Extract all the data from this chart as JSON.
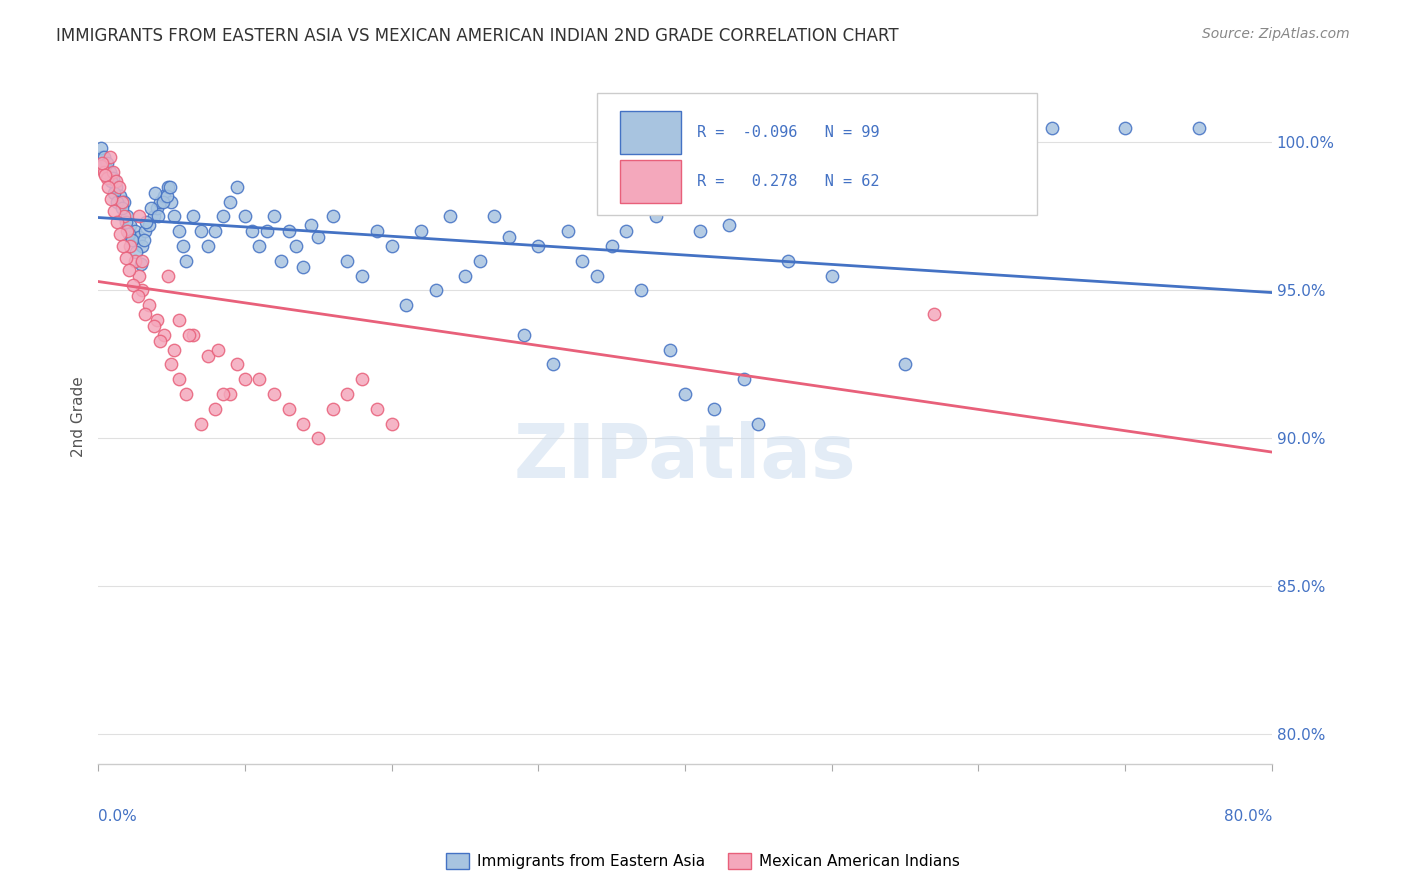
{
  "title": "IMMIGRANTS FROM EASTERN ASIA VS MEXICAN AMERICAN INDIAN 2ND GRADE CORRELATION CHART",
  "source": "Source: ZipAtlas.com",
  "ylabel": "2nd Grade",
  "xlim": [
    0.0,
    80.0
  ],
  "ylim": [
    79.0,
    102.5
  ],
  "yticks": [
    80.0,
    85.0,
    90.0,
    95.0,
    100.0
  ],
  "ytick_labels": [
    "80.0%",
    "85.0%",
    "90.0%",
    "95.0%",
    "100.0%"
  ],
  "xticks": [
    0.0,
    10.0,
    20.0,
    30.0,
    40.0,
    50.0,
    60.0,
    70.0,
    80.0
  ],
  "blue_R": -0.096,
  "blue_N": 99,
  "pink_R": 0.278,
  "pink_N": 62,
  "blue_color": "#a8c4e0",
  "pink_color": "#f4a8bc",
  "blue_line_color": "#4472c4",
  "pink_line_color": "#e8607a",
  "legend_label_blue": "Immigrants from Eastern Asia",
  "legend_label_pink": "Mexican American Indians",
  "watermark": "ZIPatlas",
  "blue_x": [
    0.3,
    0.5,
    0.8,
    1.0,
    1.2,
    1.5,
    1.8,
    2.0,
    2.2,
    2.5,
    2.8,
    3.0,
    3.2,
    3.5,
    3.8,
    4.0,
    4.2,
    4.5,
    4.8,
    5.0,
    5.2,
    5.5,
    5.8,
    6.0,
    6.5,
    7.0,
    7.5,
    8.0,
    8.5,
    9.0,
    9.5,
    10.0,
    10.5,
    11.0,
    11.5,
    12.0,
    12.5,
    13.0,
    13.5,
    14.0,
    14.5,
    15.0,
    16.0,
    17.0,
    18.0,
    19.0,
    20.0,
    21.0,
    22.0,
    23.0,
    24.0,
    25.0,
    26.0,
    27.0,
    28.0,
    29.0,
    30.0,
    31.0,
    32.0,
    33.0,
    34.0,
    35.0,
    36.0,
    37.0,
    38.0,
    39.0,
    40.0,
    41.0,
    42.0,
    43.0,
    44.0,
    45.0,
    47.0,
    50.0,
    55.0,
    60.0,
    65.0,
    70.0,
    75.0,
    0.2,
    0.4,
    0.6,
    0.9,
    1.1,
    1.3,
    1.6,
    1.9,
    2.1,
    2.3,
    2.6,
    2.9,
    3.1,
    3.3,
    3.6,
    3.9,
    4.1,
    4.4,
    4.7,
    4.9
  ],
  "blue_y": [
    99.5,
    99.2,
    99.0,
    98.8,
    98.5,
    98.2,
    98.0,
    97.5,
    97.2,
    97.0,
    96.8,
    96.5,
    97.0,
    97.2,
    97.5,
    97.8,
    98.0,
    98.2,
    98.5,
    98.0,
    97.5,
    97.0,
    96.5,
    96.0,
    97.5,
    97.0,
    96.5,
    97.0,
    97.5,
    98.0,
    98.5,
    97.5,
    97.0,
    96.5,
    97.0,
    97.5,
    96.0,
    97.0,
    96.5,
    95.8,
    97.2,
    96.8,
    97.5,
    96.0,
    95.5,
    97.0,
    96.5,
    94.5,
    97.0,
    95.0,
    97.5,
    95.5,
    96.0,
    97.5,
    96.8,
    93.5,
    96.5,
    92.5,
    97.0,
    96.0,
    95.5,
    96.5,
    97.0,
    95.0,
    97.5,
    93.0,
    91.5,
    97.0,
    91.0,
    97.2,
    92.0,
    90.5,
    96.0,
    95.5,
    92.5,
    100.5,
    100.5,
    100.5,
    100.5,
    99.8,
    99.5,
    99.3,
    98.7,
    98.3,
    98.0,
    97.8,
    97.3,
    96.9,
    96.7,
    96.3,
    95.9,
    96.7,
    97.3,
    97.8,
    98.3,
    97.5,
    98.0,
    98.2,
    98.5
  ],
  "pink_x": [
    0.2,
    0.4,
    0.6,
    0.8,
    1.0,
    1.2,
    1.4,
    1.6,
    1.8,
    2.0,
    2.2,
    2.5,
    2.8,
    3.0,
    3.5,
    4.0,
    4.5,
    5.0,
    5.5,
    6.0,
    7.0,
    8.0,
    9.0,
    10.0,
    11.0,
    12.0,
    13.0,
    14.0,
    15.0,
    16.0,
    17.0,
    18.0,
    19.0,
    20.0,
    0.3,
    0.5,
    0.7,
    0.9,
    1.1,
    1.3,
    1.5,
    1.7,
    1.9,
    2.1,
    2.4,
    2.7,
    3.2,
    3.8,
    4.2,
    5.2,
    6.5,
    7.5,
    8.5,
    55.0,
    57.0,
    3.0,
    2.8,
    4.8,
    5.5,
    6.2,
    8.2,
    9.5
  ],
  "pink_y": [
    99.2,
    99.0,
    98.8,
    99.5,
    99.0,
    98.7,
    98.5,
    98.0,
    97.5,
    97.0,
    96.5,
    96.0,
    95.5,
    95.0,
    94.5,
    94.0,
    93.5,
    92.5,
    92.0,
    91.5,
    90.5,
    91.0,
    91.5,
    92.0,
    92.0,
    91.5,
    91.0,
    90.5,
    90.0,
    91.0,
    91.5,
    92.0,
    91.0,
    90.5,
    99.3,
    98.9,
    98.5,
    98.1,
    97.7,
    97.3,
    96.9,
    96.5,
    96.1,
    95.7,
    95.2,
    94.8,
    94.2,
    93.8,
    93.3,
    93.0,
    93.5,
    92.8,
    91.5,
    101.0,
    94.2,
    96.0,
    97.5,
    95.5,
    94.0,
    93.5,
    93.0,
    92.5
  ]
}
